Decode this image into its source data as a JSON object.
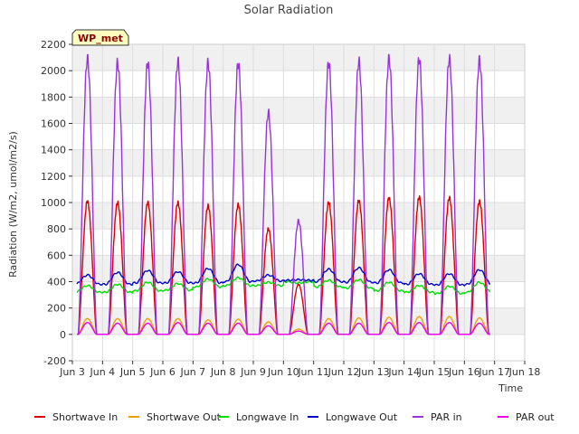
{
  "chart_data": {
    "type": "line",
    "title": "Solar Radiation",
    "xlabel": "Time",
    "ylabel": "Radiation (W/m2, umol/m2/s)",
    "badge": "WP_met",
    "xlim": [
      3,
      18
    ],
    "ylim": [
      -200,
      2200
    ],
    "x_ticks": [
      {
        "v": 3,
        "label": "Jun 3"
      },
      {
        "v": 4,
        "label": "Jun 4"
      },
      {
        "v": 5,
        "label": "Jun 5"
      },
      {
        "v": 6,
        "label": "Jun 6"
      },
      {
        "v": 7,
        "label": "Jun 7"
      },
      {
        "v": 8,
        "label": "Jun 8"
      },
      {
        "v": 9,
        "label": "Jun 9"
      },
      {
        "v": 10,
        "label": "Jun 10"
      },
      {
        "v": 11,
        "label": "Jun 11"
      },
      {
        "v": 12,
        "label": "Jun 12"
      },
      {
        "v": 13,
        "label": "Jun 13"
      },
      {
        "v": 14,
        "label": "Jun 14"
      },
      {
        "v": 15,
        "label": "Jun 15"
      },
      {
        "v": 16,
        "label": "Jun 16"
      },
      {
        "v": 17,
        "label": "Jun 17"
      },
      {
        "v": 18,
        "label": "Jun 18"
      }
    ],
    "y_ticks": [
      -200,
      0,
      200,
      400,
      600,
      800,
      1000,
      1200,
      1400,
      1600,
      1800,
      2000,
      2200
    ],
    "grid": true,
    "legend_position": "bottom",
    "days": [
      3.5,
      4.5,
      5.5,
      6.5,
      7.5,
      8.5,
      9.5,
      10.5,
      11.5,
      12.5,
      13.5,
      14.5,
      15.5,
      16.5
    ],
    "series": [
      {
        "name": "Shortwave In",
        "color": "#dd0000",
        "kind": "peak",
        "peaks": [
          1010,
          1000,
          1000,
          1000,
          975,
          985,
          800,
          380,
          1000,
          1015,
          1035,
          1040,
          1035,
          1010
        ]
      },
      {
        "name": "Shortwave Out",
        "color": "#f0a000",
        "kind": "peak",
        "peaks": [
          120,
          120,
          120,
          120,
          110,
          115,
          95,
          40,
          120,
          125,
          130,
          135,
          135,
          125
        ]
      },
      {
        "name": "Longwave In",
        "color": "#00dd00",
        "kind": "base",
        "night": [
          320,
          320,
          330,
          335,
          360,
          370,
          370,
          400,
          360,
          350,
          330,
          320,
          310,
          320
        ],
        "day": [
          370,
          380,
          395,
          385,
          420,
          430,
          395,
          390,
          410,
          415,
          395,
          370,
          365,
          395
        ]
      },
      {
        "name": "Longwave Out",
        "color": "#0000cc",
        "kind": "base",
        "night": [
          380,
          380,
          390,
          390,
          390,
          400,
          405,
          410,
          400,
          395,
          390,
          380,
          375,
          380
        ],
        "day": [
          450,
          470,
          485,
          475,
          500,
          530,
          450,
          415,
          495,
          505,
          490,
          460,
          460,
          490
        ]
      },
      {
        "name": "PAR in",
        "color": "#9933dd",
        "kind": "peak",
        "peaks": [
          2090,
          2060,
          2060,
          2070,
          2060,
          2055,
          1680,
          860,
          2060,
          2070,
          2090,
          2090,
          2090,
          2080
        ]
      },
      {
        "name": "PAR out",
        "color": "#ee00ee",
        "kind": "peak",
        "peaks": [
          90,
          85,
          85,
          90,
          85,
          85,
          65,
          25,
          85,
          85,
          90,
          90,
          90,
          85
        ]
      }
    ]
  }
}
